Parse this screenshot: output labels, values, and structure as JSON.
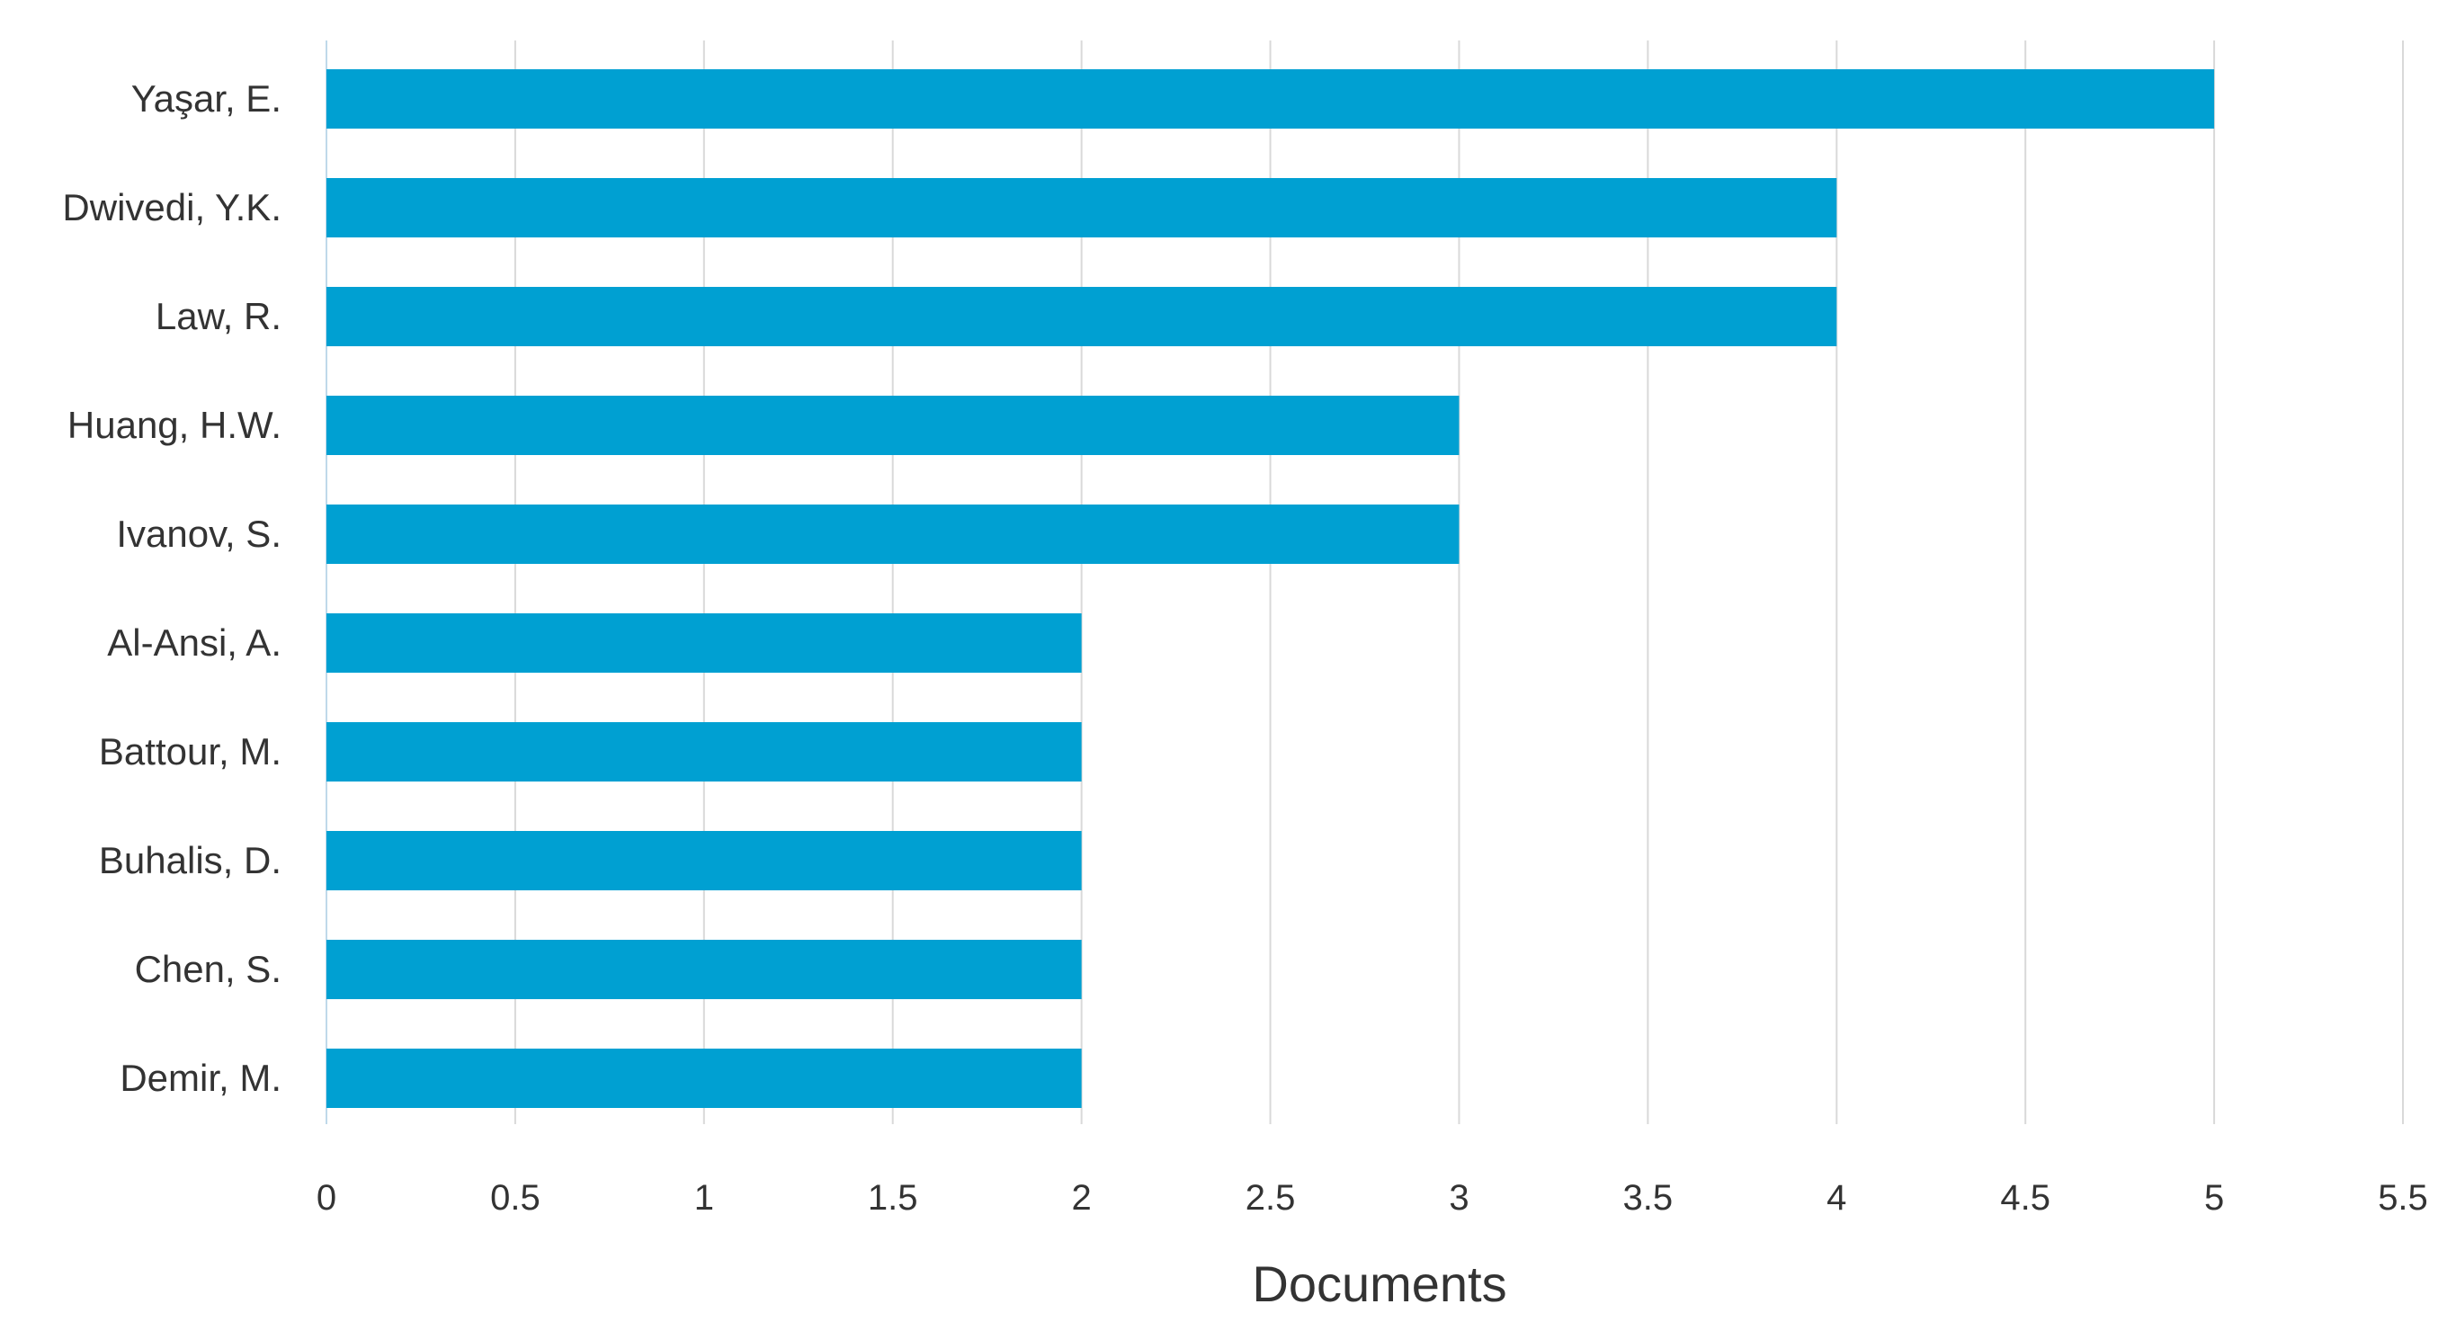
{
  "chart_data": {
    "type": "bar",
    "orientation": "horizontal",
    "categories": [
      "Yaşar, E.",
      "Dwivedi, Y.K.",
      "Law, R.",
      "Huang, H.W.",
      "Ivanov, S.",
      "Al-Ansi, A.",
      "Battour, M.",
      "Buhalis, D.",
      "Chen, S.",
      "Demir, M."
    ],
    "values": [
      5,
      4,
      4,
      3,
      3,
      2,
      2,
      2,
      2,
      2
    ],
    "xlabel": "Documents",
    "ylabel": "",
    "xlim": [
      0,
      5.5
    ],
    "xticks": [
      "0",
      "0.5",
      "1",
      "1.5",
      "2",
      "2.5",
      "3",
      "3.5",
      "4",
      "4.5",
      "5",
      "5.5"
    ],
    "grid": "vertical",
    "legend": "none",
    "bar_color": "#00A0D2",
    "grid_color": "#D9D9D9"
  }
}
